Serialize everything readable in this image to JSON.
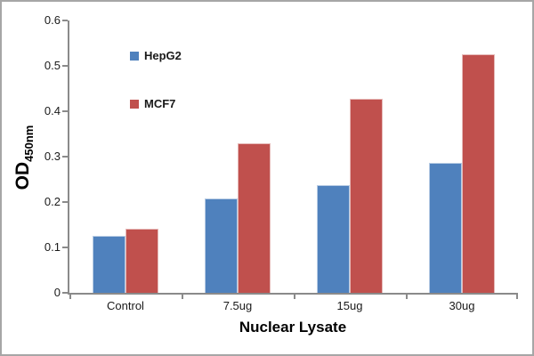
{
  "chart": {
    "y_axis_title_main": "OD",
    "y_axis_title_sub": "450nm",
    "x_axis_title": "Nuclear Lysate"
  },
  "chart_data": {
    "type": "bar",
    "categories": [
      "Control",
      "7.5ug",
      "15ug",
      "30ug"
    ],
    "series": [
      {
        "name": "HepG2",
        "color": "#4f81bd",
        "border_color": "#b8cce4",
        "values": [
          0.125,
          0.208,
          0.237,
          0.286
        ]
      },
      {
        "name": "MCF7",
        "color": "#c0504d",
        "border_color": "#e6b9b8",
        "values": [
          0.142,
          0.33,
          0.427,
          0.525
        ]
      }
    ],
    "title": "",
    "xlabel": "Nuclear Lysate",
    "ylabel": "OD450nm",
    "ylim": [
      0,
      0.6
    ],
    "yticks": [
      0,
      0.1,
      0.2,
      0.3,
      0.4,
      0.5,
      0.6
    ],
    "grid": false,
    "legend_position": "inside-upper-left",
    "colors": {
      "axis_line": "#8a8a8a",
      "frame_border": "#a6a6a6",
      "text": "#1a1a1a"
    }
  }
}
